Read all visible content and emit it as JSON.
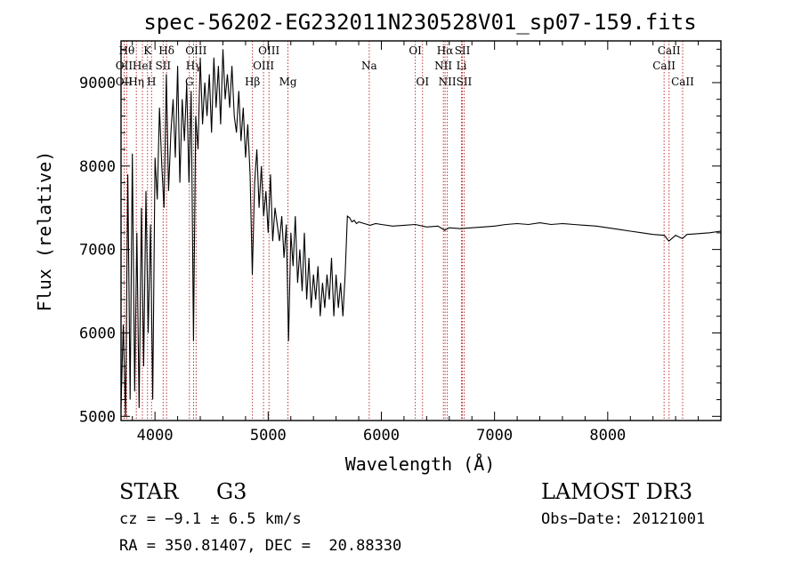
{
  "chart_data": {
    "type": "line",
    "title": "spec-56202-EG232011N230528V01_sp07-159.fits",
    "xlabel": "Wavelength (Å)",
    "ylabel": "Flux (relative)",
    "xlim": [
      3700,
      9000
    ],
    "ylim": [
      4950,
      9500
    ],
    "x_ticks": [
      4000,
      5000,
      6000,
      7000,
      8000
    ],
    "y_ticks": [
      5000,
      6000,
      7000,
      8000,
      9000
    ],
    "grid": false,
    "legend": "none",
    "line_color": "#000000",
    "marker_color": "#b22222",
    "series": [
      {
        "x": [
          3700,
          3720,
          3740,
          3760,
          3780,
          3800,
          3820,
          3840,
          3860,
          3880,
          3900,
          3920,
          3940,
          3960,
          3980,
          4000,
          4020,
          4040,
          4060,
          4080,
          4100,
          4120,
          4140,
          4160,
          4180,
          4200,
          4220,
          4240,
          4260,
          4280,
          4300,
          4320,
          4340,
          4360,
          4380,
          4400,
          4420,
          4440,
          4460,
          4480,
          4500,
          4520,
          4540,
          4560,
          4580,
          4600,
          4620,
          4640,
          4660,
          4680,
          4700,
          4720,
          4740,
          4760,
          4780,
          4800,
          4820,
          4840,
          4860,
          4880,
          4900,
          4920,
          4940,
          4960,
          4980,
          5000,
          5020,
          5040,
          5060,
          5080,
          5100,
          5120,
          5140,
          5160,
          5180,
          5200,
          5220,
          5240,
          5260,
          5280,
          5300,
          5320,
          5340,
          5360,
          5380,
          5400,
          5420,
          5440,
          5460,
          5480,
          5500,
          5520,
          5540,
          5560,
          5580,
          5600,
          5620,
          5640,
          5660,
          5680,
          5700,
          5720,
          5740,
          5760,
          5780,
          5800,
          5850,
          5900,
          5950,
          6000,
          6100,
          6200,
          6300,
          6400,
          6500,
          6560,
          6600,
          6700,
          6800,
          6900,
          7000,
          7100,
          7200,
          7300,
          7400,
          7500,
          7600,
          7700,
          7800,
          7900,
          8000,
          8100,
          8200,
          8300,
          8400,
          8500,
          8540,
          8600,
          8660,
          8700,
          8800,
          8900,
          9000
        ],
        "y": [
          5100,
          6100,
          5000,
          7900,
          5200,
          8150,
          5300,
          7200,
          5100,
          7500,
          5600,
          7700,
          6000,
          7300,
          5200,
          8100,
          7600,
          8700,
          8000,
          7500,
          9100,
          7700,
          8400,
          8800,
          8100,
          9200,
          7800,
          8800,
          8300,
          9000,
          7800,
          8900,
          5900,
          8600,
          8200,
          9300,
          8500,
          9000,
          8600,
          9100,
          8400,
          9300,
          8700,
          9200,
          8500,
          9400,
          8800,
          9100,
          8700,
          9200,
          8600,
          8400,
          8900,
          8300,
          8700,
          8100,
          8500,
          7900,
          6700,
          7800,
          8200,
          7500,
          8000,
          7400,
          7700,
          7200,
          7900,
          7100,
          7500,
          7300,
          7100,
          7400,
          6900,
          7300,
          5900,
          7200,
          6800,
          7400,
          6600,
          7000,
          6500,
          7200,
          6400,
          6900,
          6300,
          6700,
          6400,
          6800,
          6200,
          6600,
          6300,
          6700,
          6400,
          6900,
          6200,
          6700,
          6300,
          6600,
          6200,
          6700,
          7400,
          7380,
          7330,
          7350,
          7310,
          7330,
          7310,
          7290,
          7310,
          7300,
          7280,
          7290,
          7300,
          7270,
          7280,
          7230,
          7260,
          7250,
          7260,
          7270,
          7280,
          7300,
          7310,
          7300,
          7320,
          7300,
          7310,
          7300,
          7290,
          7280,
          7260,
          7240,
          7220,
          7200,
          7180,
          7170,
          7100,
          7170,
          7130,
          7180,
          7190,
          7200,
          7220
        ]
      }
    ],
    "lines": [
      {
        "x": 3750,
        "labels": [
          {
            "text": "Hθ",
            "row": 0
          }
        ]
      },
      {
        "x": 3727,
        "labels": [
          {
            "text": "OII",
            "row": 1
          },
          {
            "text": "OII",
            "row": 2
          }
        ]
      },
      {
        "x": 3835,
        "labels": [
          {
            "text": "Hη",
            "row": 2
          }
        ]
      },
      {
        "x": 3889,
        "labels": [
          {
            "text": "HeI",
            "row": 1
          }
        ]
      },
      {
        "x": 3934,
        "labels": [
          {
            "text": "K",
            "row": 0
          }
        ]
      },
      {
        "x": 3969,
        "labels": [
          {
            "text": "H",
            "row": 2
          }
        ]
      },
      {
        "x": 4072,
        "labels": [
          {
            "text": "SII",
            "row": 1
          }
        ]
      },
      {
        "x": 4102,
        "labels": [
          {
            "text": "Hδ",
            "row": 0
          }
        ]
      },
      {
        "x": 4304,
        "labels": [
          {
            "text": "G",
            "row": 2
          }
        ]
      },
      {
        "x": 4341,
        "labels": [
          {
            "text": "Hγ",
            "row": 1
          }
        ]
      },
      {
        "x": 4363,
        "labels": [
          {
            "text": "OIII",
            "row": 0
          }
        ]
      },
      {
        "x": 4861,
        "labels": [
          {
            "text": "Hβ",
            "row": 2
          }
        ]
      },
      {
        "x": 4959,
        "labels": [
          {
            "text": "OIII",
            "row": 1
          }
        ]
      },
      {
        "x": 5007,
        "labels": [
          {
            "text": "OIII",
            "row": 0
          }
        ]
      },
      {
        "x": 5175,
        "labels": [
          {
            "text": "Mg",
            "row": 2
          }
        ]
      },
      {
        "x": 5893,
        "labels": [
          {
            "text": "Na",
            "row": 1
          }
        ]
      },
      {
        "x": 6300,
        "labels": [
          {
            "text": "OI",
            "row": 0
          }
        ]
      },
      {
        "x": 6364,
        "labels": [
          {
            "text": "OI",
            "row": 2
          }
        ]
      },
      {
        "x": 6548,
        "labels": [
          {
            "text": "NII",
            "row": 1
          }
        ]
      },
      {
        "x": 6563,
        "labels": [
          {
            "text": "Hα",
            "row": 0
          }
        ]
      },
      {
        "x": 6583,
        "labels": [
          {
            "text": "NII",
            "row": 2
          }
        ]
      },
      {
        "x": 6708,
        "labels": [
          {
            "text": "Li",
            "row": 1
          }
        ]
      },
      {
        "x": 6716,
        "labels": [
          {
            "text": "SII",
            "row": 0
          }
        ]
      },
      {
        "x": 6731,
        "labels": [
          {
            "text": "SII",
            "row": 2
          }
        ]
      },
      {
        "x": 8498,
        "labels": [
          {
            "text": "CaII",
            "row": 1
          }
        ]
      },
      {
        "x": 8542,
        "labels": [
          {
            "text": "CaII",
            "row": 0
          }
        ]
      },
      {
        "x": 8662,
        "labels": [
          {
            "text": "CaII",
            "row": 2
          }
        ]
      }
    ]
  },
  "info": {
    "object_class": "STAR",
    "subclass": "G3",
    "survey": "LAMOST DR3",
    "cz": "cz = −9.1 ± 6.5 km/s",
    "obs_date": "Obs−Date: 20121001",
    "coords": "RA = 350.81407, DEC =  20.88330"
  }
}
